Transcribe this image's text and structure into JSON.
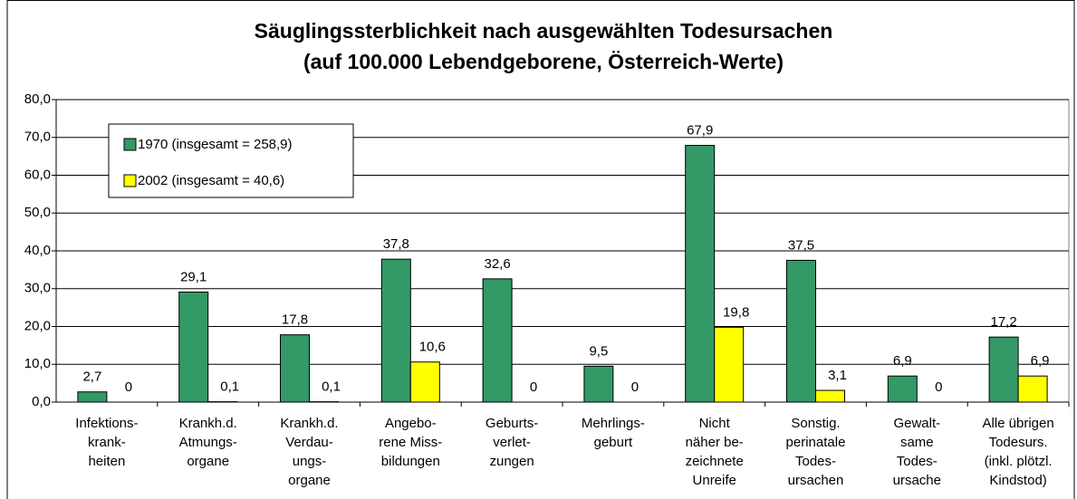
{
  "chart_data": {
    "type": "bar",
    "title": "Säuglingssterblichkeit nach ausgewählten Todesursachen",
    "subtitle": "(auf 100.000 Lebendgeborene, Österreich-Werte)",
    "categories": [
      [
        "Infektions-",
        "krank-",
        "heiten"
      ],
      [
        "Krankh.d.",
        "Atmungs-",
        "organe"
      ],
      [
        "Krankh.d.",
        "Verdau-",
        "ungs-",
        "organe"
      ],
      [
        "Angebo-",
        "rene Miss-",
        "bildungen"
      ],
      [
        "Geburts-",
        "verlet-",
        "zungen"
      ],
      [
        "Mehrlings-",
        "geburt"
      ],
      [
        "Nicht",
        "näher be-",
        "zeichnete",
        "Unreife"
      ],
      [
        "Sonstig.",
        "perinatale",
        "Todes-",
        "ursachen"
      ],
      [
        "Gewalt-",
        "same",
        "Todes-",
        "ursache"
      ],
      [
        "Alle übrigen",
        "Todesurs.",
        "(inkl. plötzl.",
        "Kindstod)"
      ]
    ],
    "series": [
      {
        "name": "1970 (insgesamt = 258,9)",
        "color": "#339966",
        "values": [
          2.7,
          29.1,
          17.8,
          37.8,
          32.6,
          9.5,
          67.9,
          37.5,
          6.9,
          17.2
        ],
        "value_labels": [
          "2,7",
          "29,1",
          "17,8",
          "37,8",
          "32,6",
          "9,5",
          "67,9",
          "37,5",
          "6,9",
          "17,2"
        ]
      },
      {
        "name": "2002 (insgesamt = 40,6)",
        "color": "#ffff00",
        "values": [
          0,
          0.1,
          0.1,
          10.6,
          0,
          0,
          19.8,
          3.1,
          0,
          6.9
        ],
        "value_labels": [
          "0",
          "0,1",
          "0,1",
          "10,6",
          "0",
          "0",
          "19,8",
          "3,1",
          "0",
          "6,9"
        ]
      }
    ],
    "ylim": [
      0,
      80
    ],
    "yticks": [
      {
        "value": 0,
        "label": "0,0"
      },
      {
        "value": 10,
        "label": "10,0"
      },
      {
        "value": 20,
        "label": "20,0"
      },
      {
        "value": 30,
        "label": "30,0"
      },
      {
        "value": 40,
        "label": "40,0"
      },
      {
        "value": 50,
        "label": "50,0"
      },
      {
        "value": 60,
        "label": "60,0"
      },
      {
        "value": 70,
        "label": "70,0"
      },
      {
        "value": 80,
        "label": "80,0"
      }
    ],
    "grid": true
  }
}
